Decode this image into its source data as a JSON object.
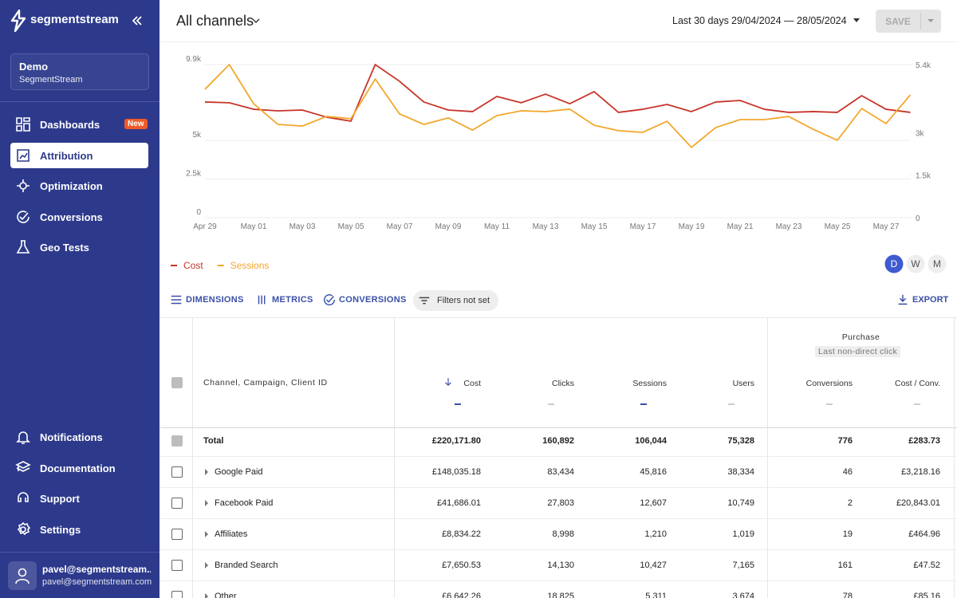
{
  "sidebar": {
    "brand": "segmentstream",
    "workspace": {
      "name": "Demo",
      "org": "SegmentStream"
    },
    "nav": [
      {
        "label": "Dashboards",
        "badge": "New"
      },
      {
        "label": "Attribution"
      },
      {
        "label": "Optimization"
      },
      {
        "label": "Conversions"
      },
      {
        "label": "Geo Tests"
      }
    ],
    "footer_nav": [
      {
        "label": "Notifications"
      },
      {
        "label": "Documentation"
      },
      {
        "label": "Support"
      },
      {
        "label": "Settings"
      }
    ],
    "user": {
      "name": "pavel@segmentstream...",
      "email": "pavel@segmentstream.com"
    }
  },
  "header": {
    "title": "All channels",
    "range_label": "Last 30 days",
    "range": "29/04/2024 — 28/05/2024",
    "save": "SAVE"
  },
  "chart_data": {
    "type": "line",
    "categories": [
      "Apr 29",
      null,
      "May 01",
      null,
      "May 03",
      null,
      "May 05",
      null,
      "May 07",
      null,
      "May 09",
      null,
      "May 11",
      null,
      "May 13",
      null,
      "May 15",
      null,
      "May 17",
      null,
      "May 19",
      null,
      "May 21",
      null,
      "May 23",
      null,
      "May 25",
      null,
      "May 27",
      null
    ],
    "series": [
      {
        "name": "Cost",
        "color": "#c7352b",
        "values": [
          7480,
          7430,
          7010,
          6910,
          6960,
          6500,
          6240,
          9900,
          8820,
          7480,
          6960,
          6860,
          7840,
          7430,
          7990,
          7370,
          8150,
          6810,
          7010,
          7320,
          6860,
          7480,
          7580,
          7010,
          6810,
          6860,
          6810,
          7890,
          7010,
          6810
        ]
      },
      {
        "name": "Sessions",
        "color": "#f2a72c",
        "axis": "y2",
        "values": [
          4530,
          5400,
          4020,
          3290,
          3230,
          3570,
          3490,
          4890,
          3660,
          3290,
          3520,
          3090,
          3600,
          3770,
          3740,
          3830,
          3260,
          3070,
          3010,
          3400,
          2480,
          3180,
          3460,
          3460,
          3570,
          3120,
          2730,
          3850,
          3320,
          4330
        ]
      }
    ],
    "ylim": [
      0,
      9900
    ],
    "yticks": [
      0,
      {
        "value": 2500,
        "label": "2.5k"
      },
      {
        "value": 5000,
        "label": "5k"
      },
      {
        "value": 9900,
        "label": "9.9k"
      }
    ],
    "y2lim": [
      0,
      5400
    ],
    "y2ticks": [
      0,
      {
        "value": 1500,
        "label": "1.5k"
      },
      {
        "value": 3000,
        "label": "3k"
      },
      {
        "value": 5400,
        "label": "5.4k"
      }
    ],
    "grid": true,
    "legend": "bottom-left"
  },
  "granularity": [
    "D",
    "W",
    "M"
  ],
  "toolbar": {
    "dimensions": "DIMENSIONS",
    "metrics": "METRICS",
    "conversions": "CONVERSIONS",
    "filters": "Filters not set",
    "export": "EXPORT"
  },
  "table": {
    "dimension_header": "Channel, Campaign, Client ID",
    "columns": [
      "Cost",
      "Clicks",
      "Sessions",
      "Users"
    ],
    "group": {
      "title": "Purchase",
      "model": "Last non-direct click",
      "columns": [
        "Conversions",
        "Cost / Conv."
      ]
    },
    "rows": [
      [
        "Total",
        "£220,171.80",
        "160,892",
        "106,044",
        "75,328",
        "776",
        "£283.73"
      ],
      [
        "Google Paid",
        "£148,035.18",
        "83,434",
        "45,816",
        "38,334",
        "46",
        "£3,218.16"
      ],
      [
        "Facebook Paid",
        "£41,686.01",
        "27,803",
        "12,607",
        "10,749",
        "2",
        "£20,843.01"
      ],
      [
        "Affiliates",
        "£8,834.22",
        "8,998",
        "1,210",
        "1,019",
        "19",
        "£464.96"
      ],
      [
        "Branded Search",
        "£7,650.53",
        "14,130",
        "10,427",
        "7,165",
        "161",
        "£47.52"
      ],
      [
        "Other",
        "£6,642.26",
        "18,825",
        "5,311",
        "3,674",
        "78",
        "£85.16"
      ]
    ]
  }
}
